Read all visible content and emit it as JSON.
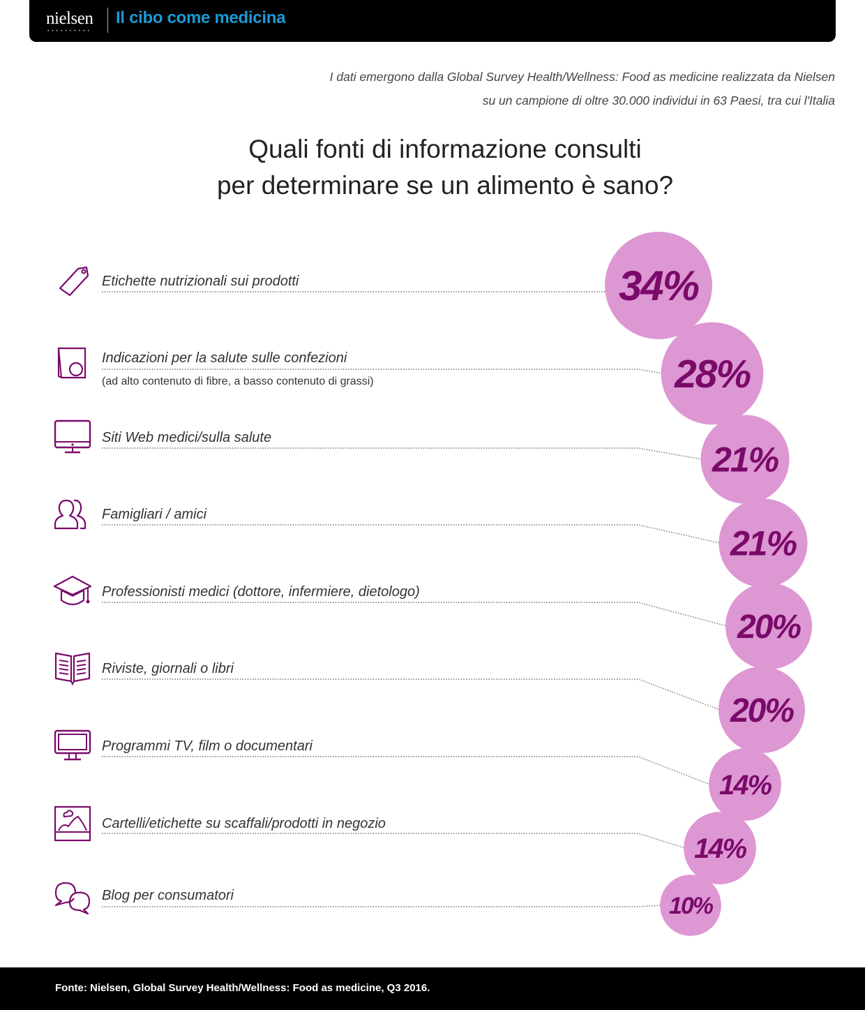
{
  "header": {
    "brand": "nielsen",
    "title": "Il cibo come medicina"
  },
  "intro": {
    "line1": "I dati emergono dalla Global Survey Health/Wellness: Food as medicine realizzata da Nielsen",
    "line2": "su un campione di oltre 30.000 individui in 63 Paesi, tra cui l'Italia"
  },
  "question": {
    "line1": "Quali fonti di informazione consulti",
    "line2": "per determinare se un alimento è sano?"
  },
  "colors": {
    "bubble_fill": "#dd97d3",
    "value_text": "#7a0a6a",
    "icon_stroke": "#7a0a6a",
    "title_blue": "#1a9ad6"
  },
  "chart_data": {
    "type": "bubble",
    "title": "Quali fonti di informazione consulti per determinare se un alimento è sano?",
    "unit": "%",
    "categories": [
      "Etichette nutrizionali sui prodotti",
      "Indicazioni per la salute sulle confezioni",
      "Siti Web medici/sulla salute",
      "Famigliari / amici",
      "Professionisti medici (dottore, infermiere, dietologo)",
      "Riviste, giornali o libri",
      "Programmi TV, film o documentari",
      "Cartelli/etichette su scaffali/prodotti in negozio",
      "Blog per consumatori"
    ],
    "values": [
      34,
      28,
      21,
      21,
      20,
      20,
      14,
      14,
      10
    ],
    "value_labels": [
      "34%",
      "28%",
      "21%",
      "21%",
      "20%",
      "20%",
      "14%",
      "14%",
      "10%"
    ],
    "sublabels": [
      "",
      "(ad alto contenuto di fibre, a basso contenuto di grassi)",
      "",
      "",
      "",
      "",
      "",
      "",
      ""
    ],
    "icons": [
      "tag-icon",
      "package-icon",
      "monitor-icon",
      "people-icon",
      "graduation-cap-icon",
      "book-icon",
      "tv-icon",
      "picture-icon",
      "chat-bubbles-icon"
    ]
  },
  "footer": {
    "source": "Fonte: Nielsen, Global Survey Health/Wellness: Food as medicine, Q3 2016."
  }
}
